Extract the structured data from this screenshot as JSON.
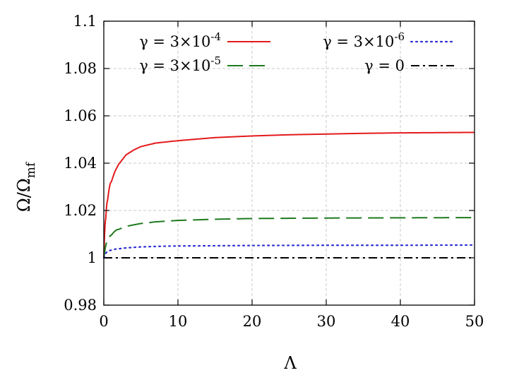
{
  "chart_data": {
    "type": "line",
    "xlabel": "Λ",
    "ylabel": "Ω/Ωmf",
    "ylabel_main": "Ω/Ω",
    "ylabel_sub": "mf",
    "xlim": [
      0,
      50
    ],
    "ylim": [
      0.98,
      1.1
    ],
    "xticks": [
      0,
      10,
      20,
      30,
      40,
      50
    ],
    "xtick_labels": [
      "0",
      "10",
      "20",
      "30",
      "40",
      "50"
    ],
    "yticks": [
      0.98,
      1.0,
      1.02,
      1.04,
      1.06,
      1.08,
      1.1
    ],
    "ytick_labels": [
      "0.98",
      "1",
      "1.02",
      "1.04",
      "1.06",
      "1.08",
      "1.1"
    ],
    "grid": true,
    "legend_position": "top",
    "series": [
      {
        "name": "γ = 3×10-4",
        "name_base": "γ = 3×10",
        "name_exp": "-4",
        "color": "#e41a1c",
        "dash": "solid",
        "x": [
          0,
          0.25,
          0.5,
          1,
          1.5,
          2,
          3,
          4,
          5,
          7,
          10,
          15,
          20,
          25,
          30,
          35,
          40,
          45,
          50
        ],
        "y": [
          1.0,
          1.016,
          1.024,
          1.032,
          1.0365,
          1.0395,
          1.0435,
          1.0455,
          1.047,
          1.0485,
          1.0495,
          1.0508,
          1.0515,
          1.052,
          1.0523,
          1.0526,
          1.0528,
          1.0529,
          1.053
        ]
      },
      {
        "name": "γ = 3×10-5",
        "name_base": "γ = 3×10",
        "name_exp": "-5",
        "color": "#1e7b1e",
        "dash": "long-dash",
        "x": [
          0,
          0.5,
          1,
          2,
          3,
          5,
          7,
          10,
          15,
          20,
          30,
          40,
          50
        ],
        "y": [
          1.0,
          1.007,
          1.0095,
          1.012,
          1.0133,
          1.0145,
          1.0152,
          1.0158,
          1.0163,
          1.0166,
          1.0168,
          1.0169,
          1.017
        ]
      },
      {
        "name": "γ = 3×10-6",
        "name_base": "γ = 3×10",
        "name_exp": "-6",
        "color": "#3030d0",
        "dash": "dotted",
        "x": [
          0,
          0.5,
          1,
          2,
          3,
          5,
          8,
          10,
          15,
          20,
          30,
          40,
          50
        ],
        "y": [
          1.0,
          1.0025,
          1.0032,
          1.0038,
          1.0042,
          1.0046,
          1.0049,
          1.005,
          1.0051,
          1.0052,
          1.0053,
          1.0053,
          1.0054
        ]
      },
      {
        "name": "γ = 0",
        "name_base": "γ = 0",
        "name_exp": "",
        "color": "#000000",
        "dash": "dash-dot",
        "x": [
          0,
          50
        ],
        "y": [
          1.0,
          1.0
        ]
      }
    ]
  }
}
